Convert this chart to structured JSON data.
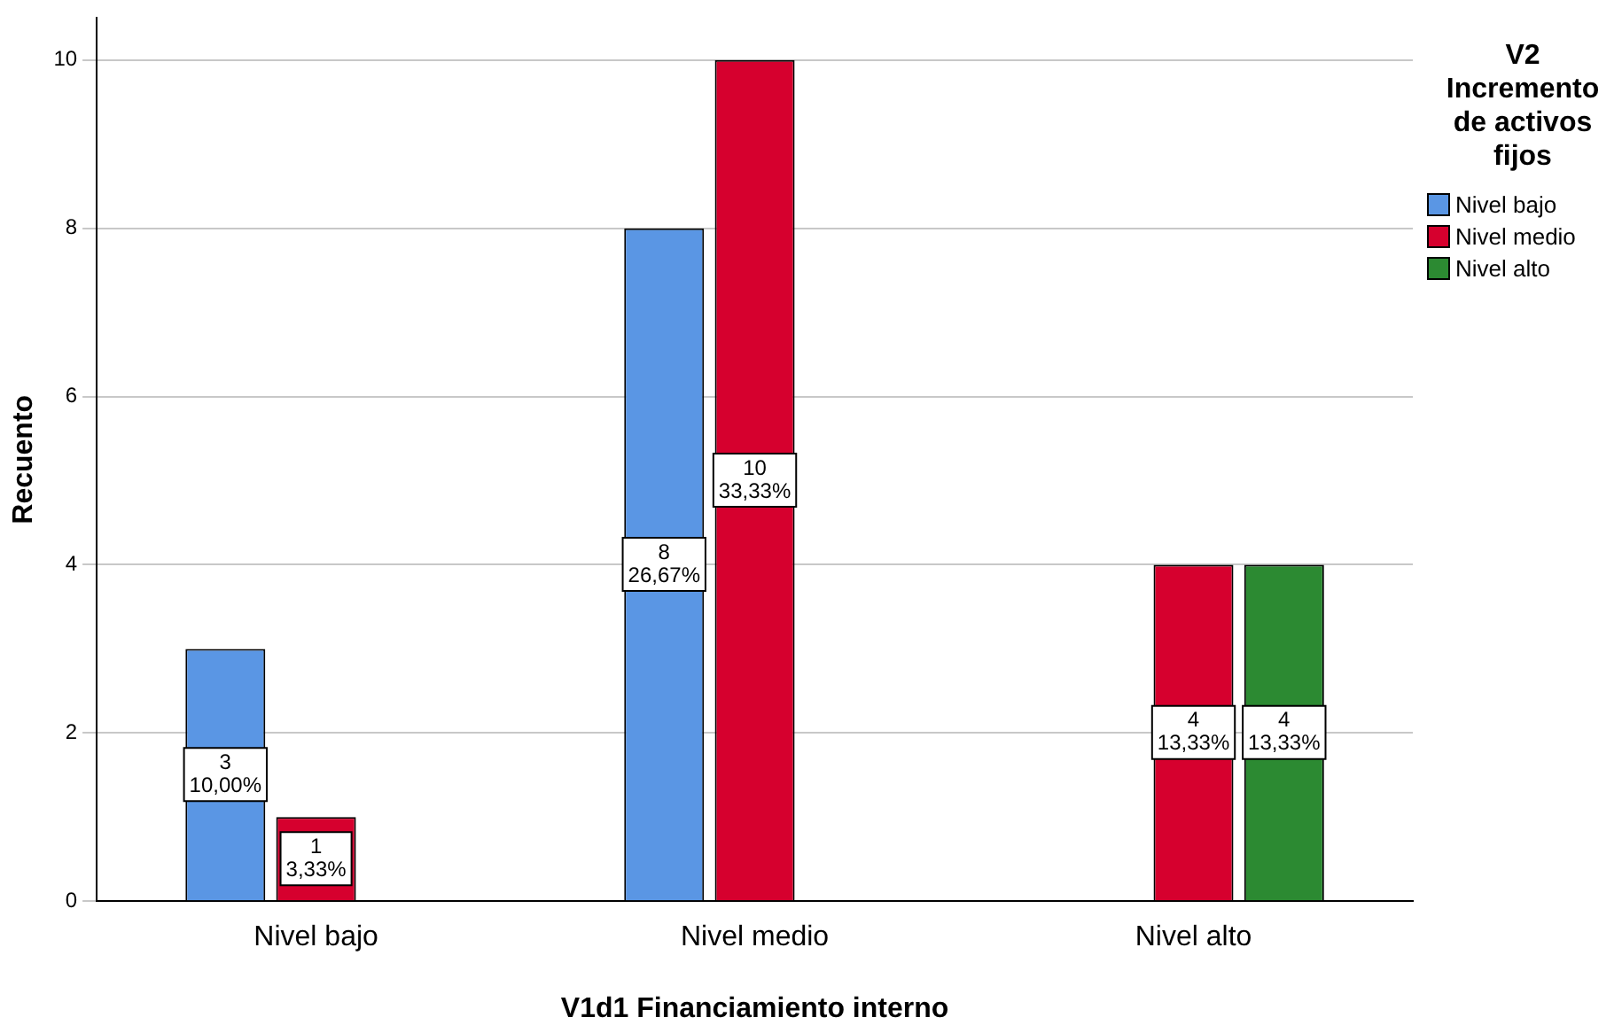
{
  "chart_data": {
    "type": "bar",
    "xlabel": "V1d1 Financiamiento interno",
    "ylabel": "Recuento",
    "legend_title": "V2 Incremento de activos fijos",
    "categories": [
      "Nivel bajo",
      "Nivel medio",
      "Nivel alto"
    ],
    "series": [
      {
        "name": "Nivel bajo",
        "color": "#5a96e4",
        "values": [
          3,
          8,
          null
        ],
        "value_labels": [
          "3\n10,00%",
          "8\n26,67%",
          null
        ]
      },
      {
        "name": "Nivel medio",
        "color": "#d6002e",
        "values": [
          1,
          10,
          4
        ],
        "value_labels": [
          "1\n3,33%",
          "10\n33,33%",
          "4\n13,33%"
        ]
      },
      {
        "name": "Nivel alto",
        "color": "#2c8a32",
        "values": [
          null,
          null,
          4
        ],
        "value_labels": [
          null,
          null,
          "4\n13,33%"
        ]
      }
    ],
    "ylim": [
      0,
      10.5
    ],
    "yticks": [
      0,
      2,
      4,
      6,
      8,
      10
    ],
    "grid": "y",
    "legend": "right"
  }
}
